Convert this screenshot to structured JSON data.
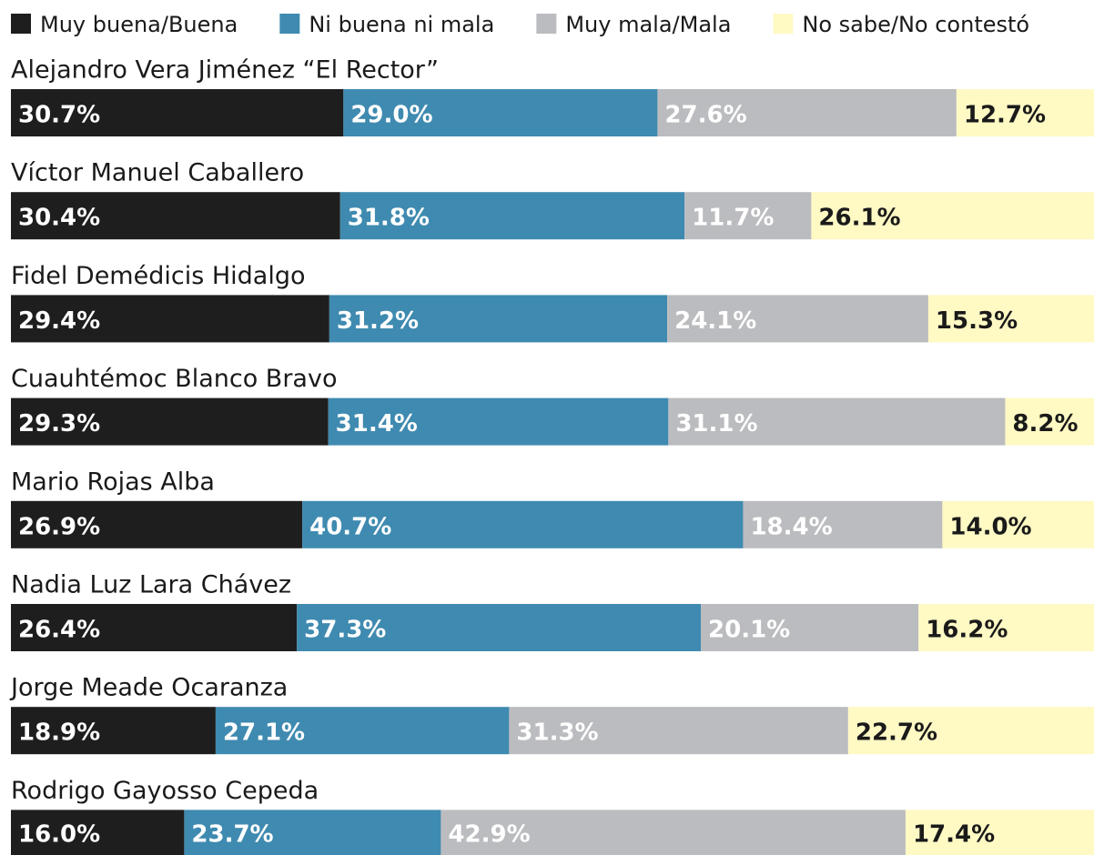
{
  "chart_data": {
    "type": "stacked-bar",
    "orientation": "horizontal",
    "categories": [
      "Alejandro Vera Jiménez “El Rector”",
      "Víctor Manuel Caballero",
      "Fidel Demédicis Hidalgo",
      "Cuauhtémoc Blanco Bravo",
      "Mario Rojas Alba",
      "Nadia Luz Lara Chávez",
      "Jorge Meade Ocaranza",
      "Rodrigo Gayosso Cepeda"
    ],
    "xlim": [
      0,
      100
    ],
    "legend": "top",
    "series": [
      {
        "name": "Muy buena/Buena",
        "color": "#1e1e1e",
        "values": [
          30.7,
          30.4,
          29.4,
          29.3,
          26.9,
          26.4,
          18.9,
          16.0
        ],
        "value_labels": [
          "30.7%",
          "30.4%",
          "29.4%",
          "29.3%",
          "26.9%",
          "26.4%",
          "18.9%",
          "16.0%"
        ]
      },
      {
        "name": "Ni buena ni mala",
        "color": "#3f8ab0",
        "values": [
          29.0,
          31.8,
          31.2,
          31.4,
          40.7,
          37.3,
          27.1,
          23.7
        ],
        "value_labels": [
          "29.0%",
          "31.8%",
          "31.2%",
          "31.4%",
          "40.7%",
          "37.3%",
          "27.1%",
          "23.7%"
        ]
      },
      {
        "name": "Muy mala/Mala",
        "color": "#bbbcbf",
        "values": [
          27.6,
          11.7,
          24.1,
          31.1,
          18.4,
          20.1,
          31.3,
          42.9
        ],
        "value_labels": [
          "27.6%",
          "11.7%",
          "24.1%",
          "31.1%",
          "18.4%",
          "20.1%",
          "31.3%",
          "42.9%"
        ]
      },
      {
        "name": "No sabe/No contestó",
        "color": "#fff9c4",
        "values": [
          12.7,
          26.1,
          15.3,
          8.2,
          14.0,
          16.2,
          22.7,
          17.4
        ],
        "value_labels": [
          "12.7%",
          "26.1%",
          "15.3%",
          "8.2%",
          "14.0%",
          "16.2%",
          "22.7%",
          "17.4%"
        ]
      }
    ]
  }
}
